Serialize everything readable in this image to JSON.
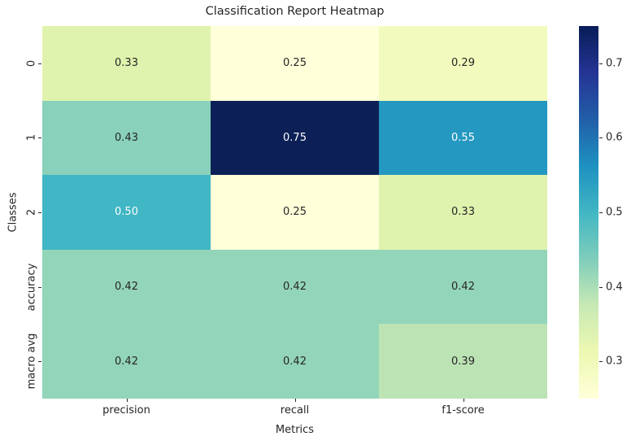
{
  "chart_data": {
    "type": "heatmap",
    "title": "Classification Report Heatmap",
    "xlabel": "Metrics",
    "ylabel": "Classes",
    "x_tick_labels": [
      "precision",
      "recall",
      "f1-score"
    ],
    "y_tick_labels": [
      "0",
      "1",
      "2",
      "accuracy",
      "macro avg"
    ],
    "values": [
      [
        0.33,
        0.25,
        0.29
      ],
      [
        0.43,
        0.75,
        0.55
      ],
      [
        0.5,
        0.25,
        0.33
      ],
      [
        0.42,
        0.42,
        0.42
      ],
      [
        0.42,
        0.42,
        0.39
      ]
    ],
    "value_decimals": 2,
    "cell_colors": [
      [
        "#e0f3ae",
        "#ffffd9",
        "#f3fabd"
      ],
      [
        "#89d1ba",
        "#0c2057",
        "#2498c1"
      ],
      [
        "#41b6c4",
        "#ffffd9",
        "#e0f3ae"
      ],
      [
        "#93d5b9",
        "#93d5b9",
        "#93d5b9"
      ],
      [
        "#93d5b9",
        "#93d5b9",
        "#bce3b4"
      ]
    ],
    "cell_text_colors": [
      [
        "#262626",
        "#262626",
        "#262626"
      ],
      [
        "#262626",
        "#ffffff",
        "#ffffff"
      ],
      [
        "#ffffff",
        "#262626",
        "#262626"
      ],
      [
        "#262626",
        "#262626",
        "#262626"
      ],
      [
        "#262626",
        "#262626",
        "#262626"
      ]
    ],
    "colormap": "YlGnBu",
    "vmin": 0.25,
    "vmax": 0.75,
    "grid_lines": false,
    "colorbar": {
      "tick_values": [
        0.7,
        0.6,
        0.5,
        0.4,
        0.3
      ],
      "tick_decimals": 1,
      "gradient_stops_bottom_to_top": [
        {
          "pos": 0,
          "color": "#ffffd9"
        },
        {
          "pos": 12.5,
          "color": "#edf8b1"
        },
        {
          "pos": 25,
          "color": "#c7e9b4"
        },
        {
          "pos": 37.5,
          "color": "#7fcdbb"
        },
        {
          "pos": 50,
          "color": "#41b6c4"
        },
        {
          "pos": 62.5,
          "color": "#1d91c0"
        },
        {
          "pos": 75,
          "color": "#225ea8"
        },
        {
          "pos": 87.5,
          "color": "#253494"
        },
        {
          "pos": 100,
          "color": "#081d58"
        }
      ]
    }
  }
}
